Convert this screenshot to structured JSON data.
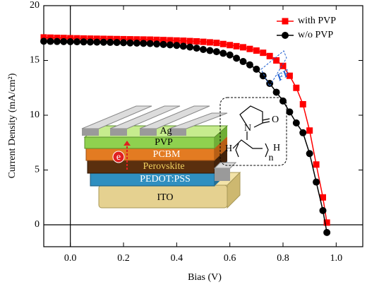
{
  "chart_data": {
    "type": "line",
    "xlabel": "Bias (V)",
    "ylabel": "Current Density (mA/cm²)",
    "xlim": [
      -0.1,
      1.1
    ],
    "ylim": [
      -2,
      20
    ],
    "xticks": [
      {
        "value": 0,
        "label": "0.0"
      },
      {
        "value": 0.2,
        "label": "0.2"
      },
      {
        "value": 0.4,
        "label": "0.4"
      },
      {
        "value": 0.6,
        "label": "0.6"
      },
      {
        "value": 0.8,
        "label": "0.8"
      },
      {
        "value": 1,
        "label": "1.0"
      }
    ],
    "yticks": [
      0,
      5,
      10,
      15,
      20
    ],
    "legend": "upper right",
    "x": [
      -0.1,
      -0.075,
      -0.05,
      -0.025,
      0,
      0.025,
      0.05,
      0.075,
      0.1,
      0.125,
      0.15,
      0.175,
      0.2,
      0.225,
      0.25,
      0.275,
      0.3,
      0.325,
      0.35,
      0.375,
      0.4,
      0.425,
      0.45,
      0.475,
      0.5,
      0.525,
      0.55,
      0.575,
      0.6,
      0.625,
      0.65,
      0.675,
      0.7,
      0.725,
      0.75,
      0.775,
      0.8,
      0.825,
      0.85,
      0.875,
      0.9,
      0.925,
      0.95,
      0.965
    ],
    "series": [
      {
        "name": "with PVP",
        "color": "#ff0000",
        "marker": "square",
        "values": [
          17.1,
          17.08,
          17.06,
          17.05,
          17.03,
          17.02,
          17.0,
          16.99,
          16.98,
          16.97,
          16.96,
          16.95,
          16.94,
          16.93,
          16.92,
          16.91,
          16.9,
          16.88,
          16.86,
          16.84,
          16.82,
          16.8,
          16.77,
          16.74,
          16.7,
          16.65,
          16.6,
          16.5,
          16.4,
          16.3,
          16.2,
          16.05,
          15.9,
          15.7,
          15.4,
          15.0,
          14.5,
          13.6,
          12.5,
          11.0,
          8.6,
          5.5,
          2.5,
          0.2
        ]
      },
      {
        "name": "w/o PVP",
        "color": "#000000",
        "marker": "circle",
        "values": [
          16.75,
          16.74,
          16.73,
          16.72,
          16.71,
          16.7,
          16.69,
          16.68,
          16.67,
          16.66,
          16.65,
          16.64,
          16.62,
          16.6,
          16.58,
          16.56,
          16.54,
          16.5,
          16.46,
          16.42,
          16.37,
          16.3,
          16.22,
          16.12,
          16.0,
          15.9,
          15.8,
          15.65,
          15.5,
          15.2,
          14.9,
          14.6,
          14.2,
          13.6,
          12.9,
          12.1,
          11.3,
          10.3,
          9.3,
          8.4,
          6.5,
          3.9,
          1.3,
          -0.7
        ]
      }
    ],
    "annotations": [
      "FF",
      "e"
    ],
    "inset_labels": [
      "Ag",
      "PVP",
      "PCBM",
      "Perovskite",
      "PEDOT:PSS",
      "ITO"
    ],
    "molecule_labels": [
      "N",
      "O",
      "H",
      "H",
      "n"
    ]
  }
}
